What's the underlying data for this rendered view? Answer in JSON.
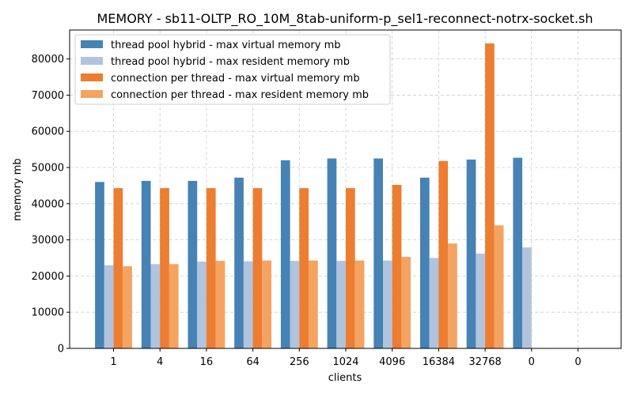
{
  "chart_data": {
    "type": "bar",
    "title": "MEMORY - sb11-OLTP_RO_10M_8tab-uniform-p_sel1-reconnect-notrx-socket.sh",
    "xlabel": "clients",
    "ylabel": "memory mb",
    "categories": [
      "1",
      "4",
      "16",
      "64",
      "256",
      "1024",
      "4096",
      "16384",
      "32768",
      "0",
      "0"
    ],
    "ylim": [
      0,
      88000
    ],
    "yticks": [
      0,
      10000,
      20000,
      30000,
      40000,
      50000,
      60000,
      70000,
      80000
    ],
    "grid": true,
    "legend_position": "top-left",
    "series": [
      {
        "name": "thread pool hybrid - max virtual memory mb",
        "color": "#4682b4",
        "values": [
          46000,
          46300,
          46300,
          47200,
          52000,
          52500,
          52500,
          47200,
          52200,
          52700,
          0
        ]
      },
      {
        "name": "thread pool hybrid - max resident memory mb",
        "color": "#b0c4de",
        "values": [
          23000,
          23300,
          24000,
          24100,
          24200,
          24200,
          24300,
          25000,
          26200,
          27900,
          0
        ]
      },
      {
        "name": "connection per thread - max virtual memory mb",
        "color": "#ed7d31",
        "values": [
          44300,
          44300,
          44300,
          44300,
          44300,
          44300,
          45200,
          51800,
          84300,
          0,
          0
        ]
      },
      {
        "name": "connection per thread - max resident memory mb",
        "color": "#f4a460",
        "values": [
          22700,
          23300,
          24200,
          24300,
          24300,
          24300,
          25300,
          29000,
          34000,
          0,
          0
        ]
      }
    ]
  }
}
